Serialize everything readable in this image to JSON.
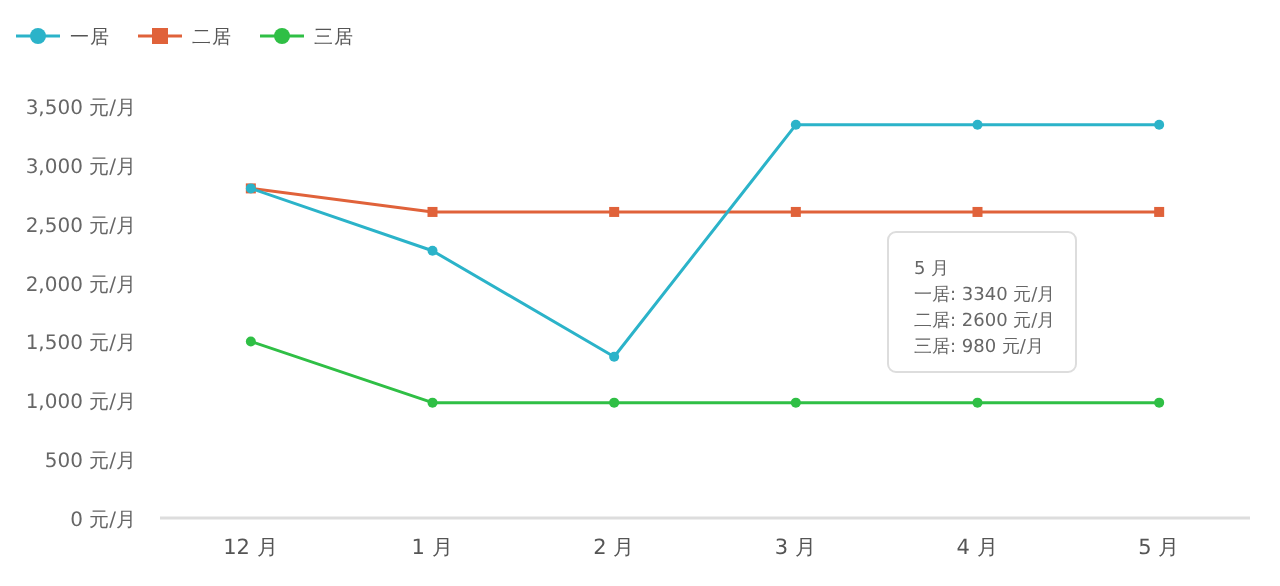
{
  "chart_data": {
    "type": "line",
    "categories": [
      "12 月",
      "1 月",
      "2 月",
      "3 月",
      "4 月",
      "5 月"
    ],
    "series": [
      {
        "name": "一居",
        "color": "#2bb3c9",
        "marker": "circle",
        "values": [
          2800,
          2270,
          1370,
          3340,
          3340,
          3340
        ]
      },
      {
        "name": "二居",
        "color": "#e0623a",
        "marker": "square",
        "values": [
          2800,
          2600,
          2600,
          2600,
          2600,
          2600
        ]
      },
      {
        "name": "三居",
        "color": "#2fbf45",
        "marker": "circle",
        "values": [
          1500,
          980,
          980,
          980,
          980,
          980
        ]
      }
    ],
    "ylim": [
      0,
      3500
    ],
    "yticks": [
      {
        "value": 0,
        "label": "0 元/月"
      },
      {
        "value": 500,
        "label": "500 元/月"
      },
      {
        "value": 1000,
        "label": "1,000 元/月"
      },
      {
        "value": 1500,
        "label": "1,500 元/月"
      },
      {
        "value": 2000,
        "label": "2,000 元/月"
      },
      {
        "value": 2500,
        "label": "2,500 元/月"
      },
      {
        "value": 3000,
        "label": "3,000 元/月"
      },
      {
        "value": 3500,
        "label": "3,500 元/月"
      }
    ],
    "grid": false,
    "legend": "top left",
    "annotations": [
      "5 月",
      "一居: 3340 元/月",
      "二居: 2600 元/月",
      "三居: 980 元/月"
    ]
  }
}
